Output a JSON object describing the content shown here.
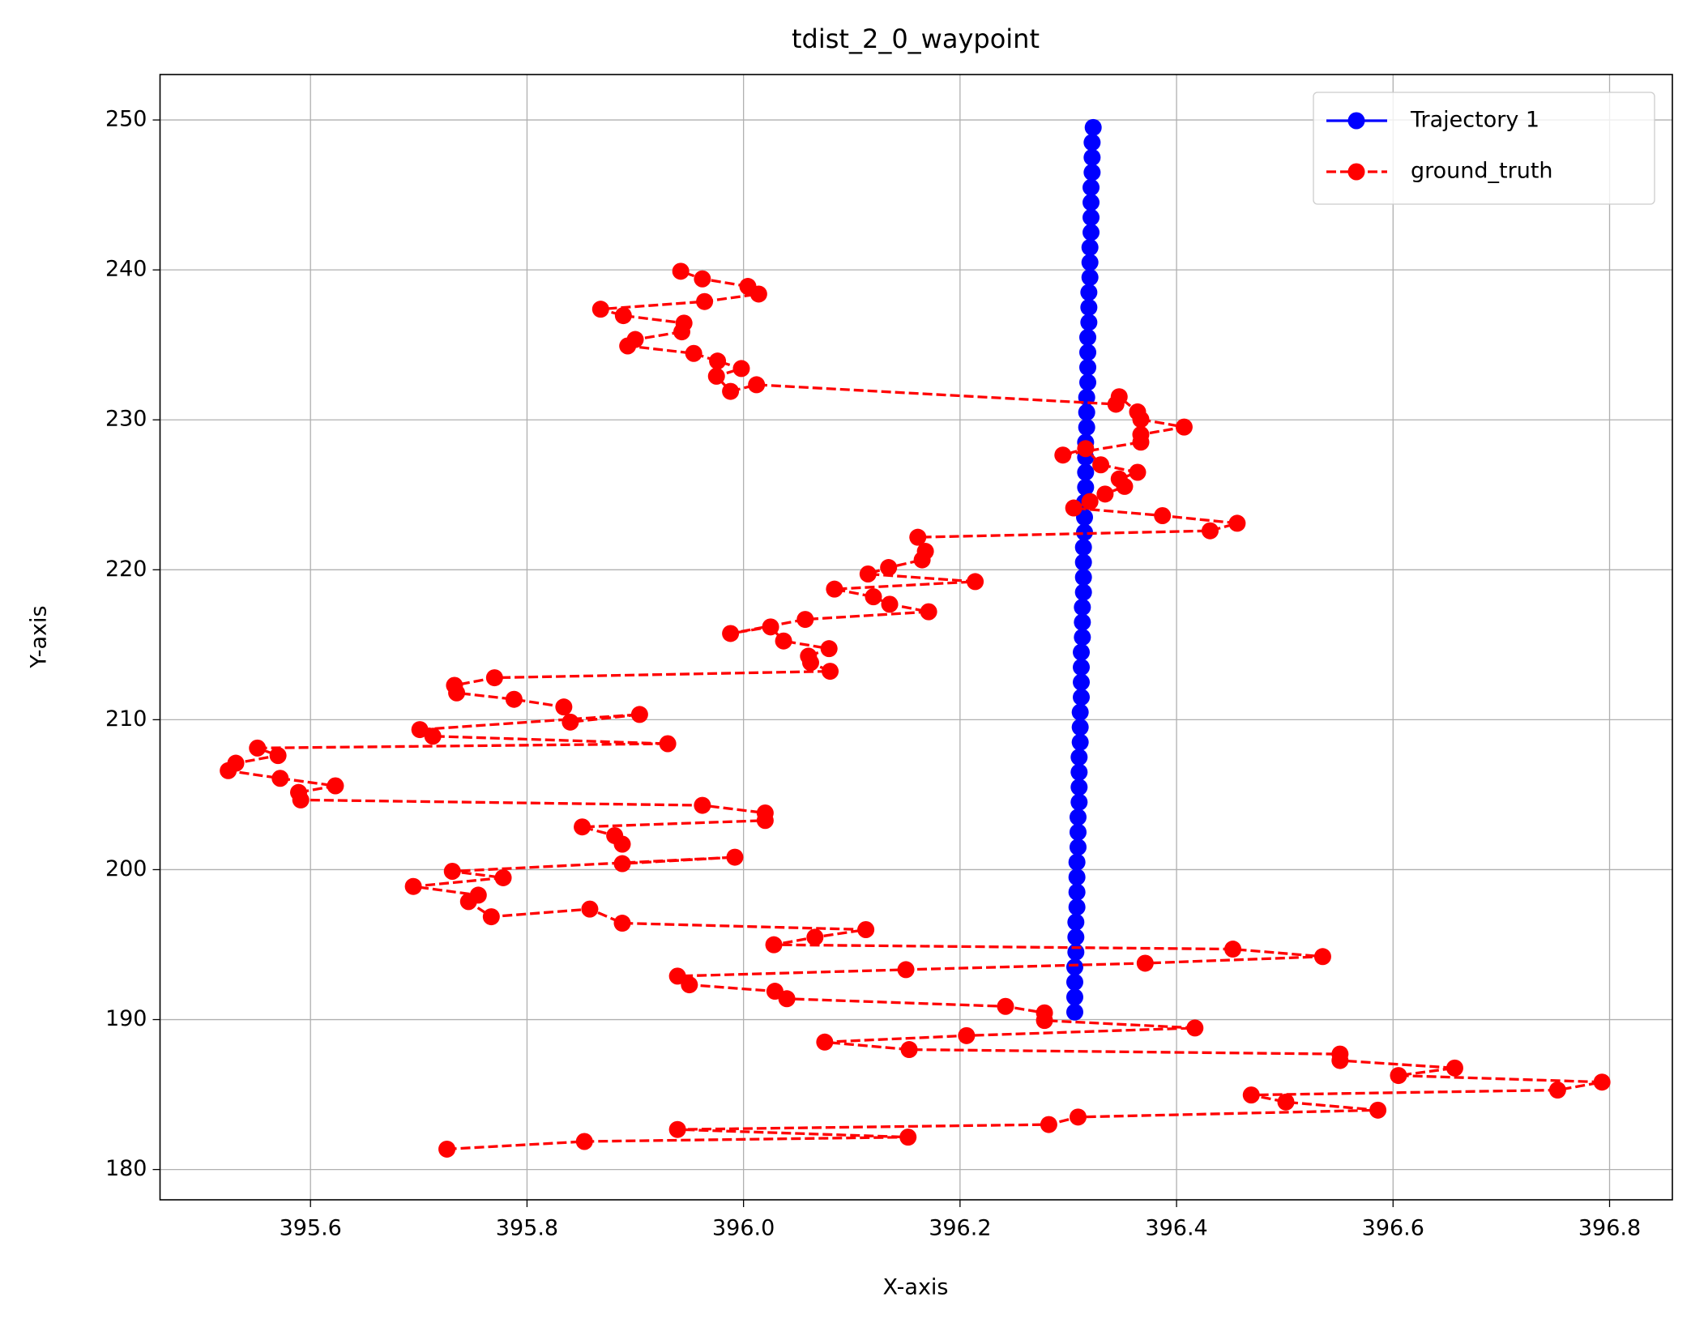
{
  "chart_data": {
    "type": "line",
    "title": "tdist_2_0_waypoint",
    "x_label": "X-axis",
    "y_label": "Y-axis",
    "xlim": [
      395.461,
      396.858
    ],
    "ylim": [
      177.98,
      253.03
    ],
    "xticks": [
      395.6,
      395.8,
      {
        "value": 396,
        "label": "396.0"
      },
      396.2,
      396.4,
      396.6,
      396.8
    ],
    "yticks": [
      180,
      190,
      200,
      210,
      220,
      230,
      240,
      250
    ],
    "grid": true,
    "legend": "upper right",
    "series": [
      {
        "name": "Trajectory 1",
        "color": "#0000ff",
        "style": "solid",
        "x": [
          396.306,
          396.306,
          396.306,
          396.306,
          396.307,
          396.307,
          396.307,
          396.308,
          396.308,
          396.308,
          396.308,
          396.309,
          396.309,
          396.309,
          396.31,
          396.31,
          396.31,
          396.31,
          396.311,
          396.311,
          396.311,
          396.312,
          396.312,
          396.312,
          396.312,
          396.313,
          396.313,
          396.313,
          396.314,
          396.314,
          396.314,
          396.314,
          396.315,
          396.315,
          396.315,
          396.316,
          396.316,
          396.316,
          396.316,
          396.317,
          396.317,
          396.317,
          396.318,
          396.318,
          396.318,
          396.318,
          396.319,
          396.319,
          396.319,
          396.32,
          396.32,
          396.32,
          396.321,
          396.321,
          396.321,
          396.321,
          396.322,
          396.322,
          396.322,
          396.323
        ],
        "values": [
          190.5,
          191.5,
          192.5,
          193.5,
          194.5,
          195.5,
          196.5,
          197.5,
          198.5,
          199.5,
          200.5,
          201.5,
          202.5,
          203.5,
          204.5,
          205.5,
          206.5,
          207.5,
          208.5,
          209.5,
          210.5,
          211.5,
          212.5,
          213.5,
          214.5,
          215.5,
          216.5,
          217.5,
          218.5,
          219.5,
          220.5,
          221.5,
          222.5,
          223.5,
          224.5,
          225.5,
          226.5,
          227.5,
          228.5,
          229.5,
          230.5,
          231.5,
          232.5,
          233.5,
          234.5,
          235.5,
          236.5,
          237.5,
          238.5,
          239.5,
          240.5,
          241.5,
          242.5,
          243.5,
          244.5,
          245.5,
          246.5,
          247.5,
          248.5,
          249.5
        ]
      },
      {
        "name": "ground_truth",
        "color": "#ff0000",
        "style": "dashed",
        "x": [
          395.726,
          395.853,
          396.152,
          395.939,
          396.282,
          396.309,
          396.586,
          396.501,
          396.469,
          396.752,
          396.793,
          396.605,
          396.657,
          396.551,
          396.551,
          396.153,
          396.075,
          396.206,
          396.417,
          396.278,
          396.278,
          396.242,
          396.04,
          396.029,
          395.95,
          395.939,
          396.15,
          396.371,
          396.535,
          396.452,
          396.028,
          396.066,
          396.113,
          395.888,
          395.858,
          395.767,
          395.746,
          395.755,
          395.695,
          395.778,
          395.731,
          395.992,
          395.888,
          395.888,
          395.881,
          395.851,
          396.02,
          396.02,
          395.962,
          395.591,
          395.589,
          395.623,
          395.572,
          395.524,
          395.531,
          395.57,
          395.551,
          395.93,
          395.713,
          395.701,
          395.904,
          395.84,
          395.834,
          395.788,
          395.735,
          395.733,
          395.77,
          396.08,
          396.062,
          396.06,
          396.079,
          396.037,
          396.025,
          395.988,
          396.057,
          396.171,
          396.135,
          396.12,
          396.084,
          396.214,
          396.115,
          396.134,
          396.165,
          396.168,
          396.161,
          396.431,
          396.456,
          396.387,
          396.305,
          396.32,
          396.334,
          396.352,
          396.347,
          396.364,
          396.33,
          396.316,
          396.295,
          396.367,
          396.367,
          396.407,
          396.367,
          396.364,
          396.347,
          396.344,
          396.012,
          395.988,
          395.975,
          395.998,
          395.976,
          395.954,
          395.893,
          395.9,
          395.943,
          395.945,
          395.889,
          395.868,
          395.964,
          396.014,
          396.004,
          395.962,
          395.942
        ],
        "values": [
          181.36,
          181.87,
          182.16,
          182.67,
          183.0,
          183.5,
          183.96,
          184.5,
          184.97,
          185.3,
          185.83,
          186.27,
          186.77,
          187.27,
          187.7,
          188.0,
          188.5,
          188.93,
          189.44,
          189.94,
          190.45,
          190.88,
          191.39,
          191.89,
          192.32,
          192.9,
          193.33,
          193.76,
          194.2,
          194.7,
          194.99,
          195.49,
          196.0,
          196.43,
          197.37,
          196.86,
          197.87,
          198.3,
          198.88,
          199.46,
          199.89,
          200.83,
          200.4,
          201.7,
          202.27,
          202.85,
          203.28,
          203.78,
          204.29,
          204.65,
          205.15,
          205.59,
          206.09,
          206.6,
          207.1,
          207.61,
          208.11,
          208.4,
          208.9,
          209.34,
          210.35,
          209.84,
          210.85,
          211.36,
          211.79,
          212.29,
          212.8,
          213.23,
          213.81,
          214.24,
          214.74,
          215.25,
          216.19,
          215.75,
          216.69,
          217.2,
          217.7,
          218.2,
          218.71,
          219.21,
          219.72,
          220.15,
          220.66,
          221.23,
          222.17,
          222.6,
          223.1,
          223.61,
          224.12,
          224.55,
          225.05,
          225.56,
          226.06,
          226.5,
          227.0,
          228.08,
          227.65,
          228.51,
          229.02,
          229.52,
          230.03,
          230.53,
          231.54,
          231.04,
          232.34,
          231.9,
          232.91,
          233.42,
          233.92,
          234.43,
          234.93,
          235.36,
          235.87,
          236.45,
          236.95,
          237.38,
          237.89,
          238.39,
          238.9,
          239.4,
          239.91
        ]
      }
    ]
  }
}
